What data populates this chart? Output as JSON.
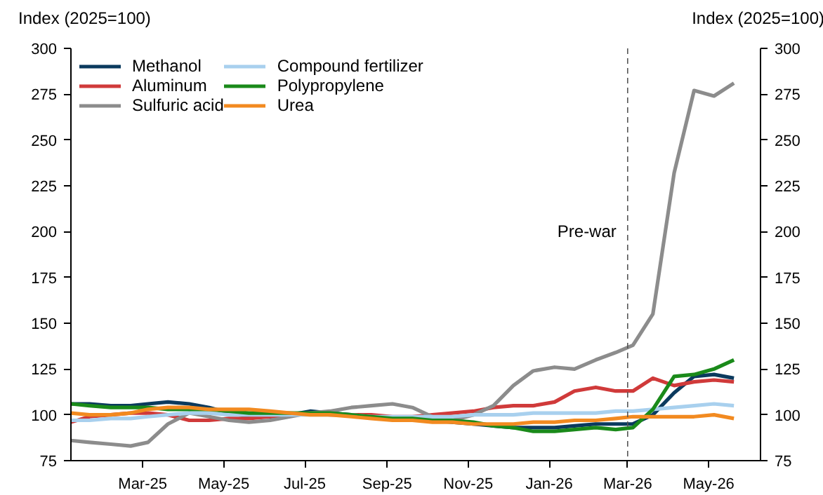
{
  "chart_data": {
    "type": "line",
    "ylabel": "Index (2025=100)",
    "y2label": "Index (2025=100)",
    "x": [
      "2025-01-06",
      "2025-01-20",
      "2025-02-05",
      "2025-02-20",
      "2025-03-05",
      "2025-03-20",
      "2025-04-05",
      "2025-04-20",
      "2025-05-05",
      "2025-05-20",
      "2025-06-05",
      "2025-06-20",
      "2025-07-05",
      "2025-07-20",
      "2025-08-05",
      "2025-08-20",
      "2025-09-05",
      "2025-09-20",
      "2025-10-05",
      "2025-10-20",
      "2025-11-05",
      "2025-11-20",
      "2025-12-05",
      "2025-12-20",
      "2026-01-05",
      "2026-01-20",
      "2026-02-05",
      "2026-02-20",
      "2026-03-05",
      "2026-03-20",
      "2026-04-05",
      "2026-04-20",
      "2026-05-05",
      "2026-05-20"
    ],
    "series": [
      {
        "name": "Methanol",
        "color": "#0b3a5e",
        "values": [
          106,
          106,
          105,
          105,
          106,
          107,
          106,
          104,
          101,
          99,
          99,
          100,
          102,
          101,
          100,
          99,
          98,
          97,
          97,
          96,
          95,
          94,
          93,
          93,
          93,
          94,
          95,
          95,
          95,
          100,
          112,
          121,
          122,
          120
        ]
      },
      {
        "name": "Aluminum",
        "color": "#d03a3a",
        "values": [
          96,
          99,
          100,
          101,
          101,
          100,
          97,
          97,
          98,
          98,
          99,
          100,
          101,
          100,
          100,
          100,
          99,
          99,
          100,
          101,
          102,
          104,
          105,
          105,
          107,
          113,
          115,
          113,
          113,
          120,
          116,
          118,
          119,
          118
        ]
      },
      {
        "name": "Sulfuric acid",
        "color": "#8c8c8c",
        "values": [
          86,
          85,
          84,
          83,
          85,
          95,
          101,
          99,
          97,
          96,
          97,
          99,
          101,
          102,
          104,
          105,
          106,
          104,
          99,
          97,
          100,
          105,
          116,
          124,
          126,
          125,
          130,
          134,
          138,
          155,
          232,
          277,
          274,
          281
        ]
      },
      {
        "name": "Compound fertilizer",
        "color": "#a8d0ee",
        "values": [
          97,
          97,
          98,
          98,
          99,
          100,
          101,
          101,
          100,
          100,
          100,
          100,
          100,
          100,
          100,
          99,
          99,
          99,
          99,
          99,
          100,
          100,
          100,
          101,
          101,
          101,
          101,
          102,
          102,
          103,
          104,
          105,
          106,
          105
        ]
      },
      {
        "name": "Polypropylene",
        "color": "#1a8a1a",
        "values": [
          106,
          105,
          104,
          104,
          104,
          103,
          103,
          103,
          102,
          101,
          101,
          101,
          101,
          101,
          100,
          99,
          98,
          98,
          97,
          97,
          96,
          94,
          93,
          91,
          91,
          92,
          93,
          92,
          93,
          103,
          121,
          122,
          125,
          130
        ]
      },
      {
        "name": "Urea",
        "color": "#f28a20",
        "values": [
          101,
          100,
          100,
          101,
          103,
          104,
          104,
          103,
          103,
          103,
          102,
          101,
          100,
          100,
          99,
          98,
          97,
          97,
          96,
          96,
          95,
          95,
          95,
          96,
          96,
          97,
          97,
          98,
          99,
          99,
          99,
          99,
          100,
          98
        ]
      }
    ],
    "xlim": [
      "2025-01-06",
      "2026-06-09"
    ],
    "xticks": [
      {
        "value": "2025-03-01",
        "label": "Mar-25"
      },
      {
        "value": "2025-05-01",
        "label": "May-25"
      },
      {
        "value": "2025-07-01",
        "label": "Jul-25"
      },
      {
        "value": "2025-09-01",
        "label": "Sep-25"
      },
      {
        "value": "2025-11-01",
        "label": "Nov-25"
      },
      {
        "value": "2026-01-01",
        "label": "Jan-26"
      },
      {
        "value": "2026-03-01",
        "label": "Mar-26"
      },
      {
        "value": "2026-05-01",
        "label": "May-26"
      }
    ],
    "ylim": [
      75,
      300
    ],
    "yticks": [
      75,
      100,
      125,
      150,
      175,
      200,
      225,
      250,
      275,
      300
    ],
    "y2lim": [
      75,
      300
    ],
    "y2ticks": [
      75,
      100,
      125,
      150,
      175,
      200,
      225,
      250,
      275,
      300
    ],
    "ref_lines": [
      {
        "axis": "x",
        "value": "2026-03-01",
        "label": "Pre-war",
        "color": "#555555",
        "line_style": "dashed"
      }
    ],
    "grid": false,
    "legend": "top left",
    "line_style": "solid",
    "marker": "none"
  }
}
